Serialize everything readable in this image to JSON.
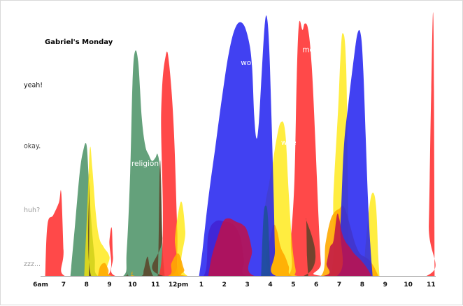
{
  "chart_data": {
    "type": "area",
    "title": "Gabriel's Monday",
    "y_levels": [
      "zzz...",
      "huh?",
      "okay.",
      "yeah!"
    ],
    "ylim": [
      0,
      4
    ],
    "x_ticks": [
      "6am",
      "7",
      "8",
      "9",
      "10",
      "11",
      "12pm",
      "1",
      "2",
      "3",
      "4",
      "5",
      "6",
      "7",
      "8",
      "9",
      "10",
      "11"
    ],
    "xlim": [
      6,
      23.2
    ],
    "grid": false,
    "legend": "none",
    "series": [
      {
        "name": "religion",
        "color": "#3d8a5a",
        "opacity": 0.8,
        "points": [
          [
            7.3,
            0
          ],
          [
            7.5,
            0.8
          ],
          [
            7.7,
            1.6
          ],
          [
            7.85,
            1.95
          ],
          [
            8.0,
            2.05
          ],
          [
            8.1,
            1.5
          ],
          [
            8.2,
            0.9
          ],
          [
            8.35,
            0.3
          ],
          [
            8.5,
            0
          ],
          [
            9.6,
            0
          ],
          [
            9.75,
            0.4
          ],
          [
            9.9,
            1.6
          ],
          [
            10.0,
            3.0
          ],
          [
            10.1,
            3.5
          ],
          [
            10.25,
            3.35
          ],
          [
            10.4,
            2.5
          ],
          [
            10.55,
            2.05
          ],
          [
            10.7,
            1.9
          ],
          [
            10.85,
            1.8
          ],
          [
            11.0,
            1.85
          ],
          [
            11.1,
            1.9
          ],
          [
            11.2,
            1.6
          ],
          [
            11.3,
            0.5
          ],
          [
            11.4,
            0
          ]
        ]
      },
      {
        "name": "",
        "color": "#ff3030",
        "opacity": 0.88,
        "points": [
          [
            6.2,
            0
          ],
          [
            6.3,
            0.8
          ],
          [
            6.55,
            0.95
          ],
          [
            6.8,
            1.15
          ],
          [
            6.9,
            1.3
          ],
          [
            7.0,
            0.4
          ],
          [
            7.05,
            0
          ],
          [
            8.9,
            0
          ],
          [
            9.0,
            0.55
          ],
          [
            9.1,
            0.75
          ],
          [
            9.15,
            0.3
          ],
          [
            9.25,
            0
          ],
          [
            11.15,
            0
          ],
          [
            11.25,
            2.6
          ],
          [
            11.45,
            3.45
          ],
          [
            11.6,
            3.3
          ],
          [
            11.8,
            2.3
          ],
          [
            11.95,
            0.7
          ],
          [
            12.05,
            0
          ],
          [
            13.1,
            0
          ],
          [
            13.3,
            0.65
          ],
          [
            13.6,
            0.85
          ],
          [
            14.0,
            0.85
          ],
          [
            14.4,
            0.8
          ],
          [
            14.7,
            0.6
          ],
          [
            14.85,
            0.25
          ],
          [
            14.95,
            0
          ],
          [
            16.75,
            0
          ],
          [
            16.9,
            0.6
          ],
          [
            17.05,
            1.5
          ],
          [
            17.15,
            3.1
          ],
          [
            17.25,
            3.95
          ],
          [
            17.4,
            3.85
          ],
          [
            17.5,
            3.95
          ],
          [
            17.65,
            3.85
          ],
          [
            17.8,
            3.3
          ],
          [
            17.95,
            2.2
          ],
          [
            18.1,
            0.9
          ],
          [
            18.2,
            0.2
          ],
          [
            18.25,
            0
          ],
          [
            22.8,
            0
          ],
          [
            22.9,
            0.8
          ],
          [
            23.0,
            2.8
          ],
          [
            23.1,
            4.0
          ],
          [
            23.15,
            0
          ]
        ]
      },
      {
        "name": "",
        "color": "#ffe700",
        "opacity": 0.75,
        "points": [
          [
            7.9,
            0
          ],
          [
            8.05,
            1.2
          ],
          [
            8.15,
            2.0
          ],
          [
            8.25,
            1.7
          ],
          [
            8.4,
            1.0
          ],
          [
            8.55,
            0.6
          ],
          [
            8.75,
            0.45
          ],
          [
            9.0,
            0.3
          ],
          [
            9.1,
            0
          ],
          [
            11.7,
            0
          ],
          [
            11.85,
            0.6
          ],
          [
            12.0,
            1.0
          ],
          [
            12.15,
            1.15
          ],
          [
            12.3,
            0.7
          ],
          [
            12.4,
            0
          ],
          [
            15.6,
            0
          ],
          [
            15.75,
            1.0
          ],
          [
            15.95,
            1.45
          ],
          [
            16.1,
            1.75
          ],
          [
            16.25,
            2.1
          ],
          [
            16.45,
            2.4
          ],
          [
            16.65,
            2.25
          ],
          [
            16.8,
            1.3
          ],
          [
            16.95,
            0.5
          ],
          [
            17.1,
            0.1
          ],
          [
            17.2,
            0
          ],
          [
            18.6,
            0
          ],
          [
            18.75,
            1.3
          ],
          [
            18.95,
            2.6
          ],
          [
            19.05,
            3.4
          ],
          [
            19.15,
            3.8
          ],
          [
            19.3,
            3.3
          ],
          [
            19.4,
            0.9
          ],
          [
            19.5,
            0
          ],
          [
            20.0,
            0
          ],
          [
            20.15,
            0.5
          ],
          [
            20.3,
            1.05
          ],
          [
            20.45,
            1.3
          ],
          [
            20.6,
            1.1
          ],
          [
            20.7,
            0.3
          ],
          [
            20.75,
            0
          ]
        ]
      },
      {
        "name": "",
        "color": "#ffaa00",
        "opacity": 0.9,
        "points": [
          [
            8.5,
            0
          ],
          [
            8.6,
            0.15
          ],
          [
            8.8,
            0.2
          ],
          [
            8.95,
            0.1
          ],
          [
            9.05,
            0
          ],
          [
            9.9,
            0
          ],
          [
            10.0,
            0.08
          ],
          [
            10.1,
            0
          ],
          [
            11.55,
            0
          ],
          [
            11.7,
            0.2
          ],
          [
            12.0,
            0.35
          ],
          [
            12.25,
            0.1
          ],
          [
            12.4,
            0
          ],
          [
            15.6,
            0
          ],
          [
            15.8,
            0.3
          ],
          [
            16.0,
            0.6
          ],
          [
            16.15,
            0.8
          ],
          [
            16.3,
            0.7
          ],
          [
            16.45,
            0.45
          ],
          [
            16.65,
            0.3
          ],
          [
            16.8,
            0.15
          ],
          [
            16.95,
            0
          ],
          [
            18.2,
            0
          ],
          [
            18.4,
            0.5
          ],
          [
            18.6,
            0.85
          ],
          [
            18.8,
            1.0
          ],
          [
            19.0,
            1.05
          ],
          [
            19.15,
            1.1
          ],
          [
            19.3,
            1.0
          ],
          [
            19.5,
            0.75
          ],
          [
            19.7,
            0.5
          ],
          [
            19.9,
            0.35
          ],
          [
            20.1,
            0.3
          ],
          [
            20.3,
            0.25
          ],
          [
            20.5,
            0.15
          ],
          [
            20.7,
            0
          ]
        ]
      },
      {
        "name": "work",
        "color": "#2020f0",
        "opacity": 0.85,
        "points": [
          [
            12.9,
            0
          ],
          [
            13.05,
            0.4
          ],
          [
            13.3,
            1.2
          ],
          [
            13.6,
            2.0
          ],
          [
            13.9,
            2.8
          ],
          [
            14.2,
            3.5
          ],
          [
            14.5,
            3.9
          ],
          [
            14.8,
            3.95
          ],
          [
            15.05,
            3.7
          ],
          [
            15.2,
            3.3
          ],
          [
            15.3,
            2.5
          ],
          [
            15.4,
            2.15
          ],
          [
            15.5,
            2.4
          ],
          [
            15.6,
            3.0
          ],
          [
            15.75,
            3.9
          ],
          [
            15.85,
            4.05
          ],
          [
            15.95,
            3.6
          ],
          [
            16.05,
            2.5
          ],
          [
            16.15,
            1.2
          ],
          [
            16.2,
            0.4
          ],
          [
            16.25,
            0
          ],
          [
            18.9,
            0
          ],
          [
            19.05,
            0.8
          ],
          [
            19.2,
            2.0
          ],
          [
            19.4,
            2.7
          ],
          [
            19.6,
            3.3
          ],
          [
            19.8,
            3.8
          ],
          [
            19.95,
            3.75
          ],
          [
            20.05,
            3.2
          ],
          [
            20.15,
            2.2
          ],
          [
            20.25,
            1.2
          ],
          [
            20.35,
            0.5
          ],
          [
            20.45,
            0
          ]
        ]
      },
      {
        "name": "",
        "color": "#c0104a",
        "opacity": 0.85,
        "points": [
          [
            13.3,
            0
          ],
          [
            13.45,
            0.3
          ],
          [
            13.7,
            0.6
          ],
          [
            13.95,
            0.85
          ],
          [
            14.2,
            0.9
          ],
          [
            14.5,
            0.85
          ],
          [
            14.8,
            0.8
          ],
          [
            15.0,
            0.7
          ],
          [
            15.2,
            0.4
          ],
          [
            15.3,
            0
          ],
          [
            18.3,
            0
          ],
          [
            18.45,
            0.2
          ],
          [
            18.6,
            0.45
          ],
          [
            18.75,
            0.55
          ],
          [
            18.9,
            0.95
          ],
          [
            19.0,
            0.9
          ],
          [
            19.1,
            0.7
          ],
          [
            19.25,
            0.55
          ],
          [
            19.45,
            0.45
          ],
          [
            19.65,
            0.35
          ],
          [
            19.85,
            0.28
          ],
          [
            20.05,
            0.2
          ],
          [
            20.25,
            0.1
          ],
          [
            20.4,
            0
          ]
        ]
      },
      {
        "name": "",
        "color": "#1f4f9a",
        "opacity": 0.9,
        "points": [
          [
            15.6,
            0
          ],
          [
            15.7,
            0.9
          ],
          [
            15.8,
            1.1
          ],
          [
            15.9,
            0.9
          ],
          [
            16.0,
            0
          ]
        ]
      },
      {
        "name": "",
        "color": "#5a4228",
        "opacity": 0.85,
        "points": [
          [
            8.1,
            0
          ],
          [
            8.15,
            1.6
          ],
          [
            8.2,
            0
          ],
          [
            9.65,
            0
          ],
          [
            9.75,
            0.05
          ],
          [
            9.85,
            0
          ],
          [
            10.4,
            0
          ],
          [
            10.5,
            0.1
          ],
          [
            10.65,
            0.3
          ],
          [
            10.75,
            0.15
          ],
          [
            10.9,
            0
          ],
          [
            11.1,
            0
          ],
          [
            11.2,
            1.8
          ],
          [
            11.3,
            0.6
          ],
          [
            11.35,
            0
          ],
          [
            17.45,
            0
          ],
          [
            17.55,
            0.9
          ],
          [
            17.6,
            0.3
          ],
          [
            17.65,
            0
          ]
        ]
      }
    ],
    "annotations": [
      {
        "text": "religion",
        "x": 10.55,
        "y": 1.72
      },
      {
        "text": "work",
        "x": 15.1,
        "y": 3.3
      },
      {
        "text": "wife",
        "x": 16.8,
        "y": 2.05
      },
      {
        "text": "me",
        "x": 17.65,
        "y": 3.5
      }
    ]
  }
}
